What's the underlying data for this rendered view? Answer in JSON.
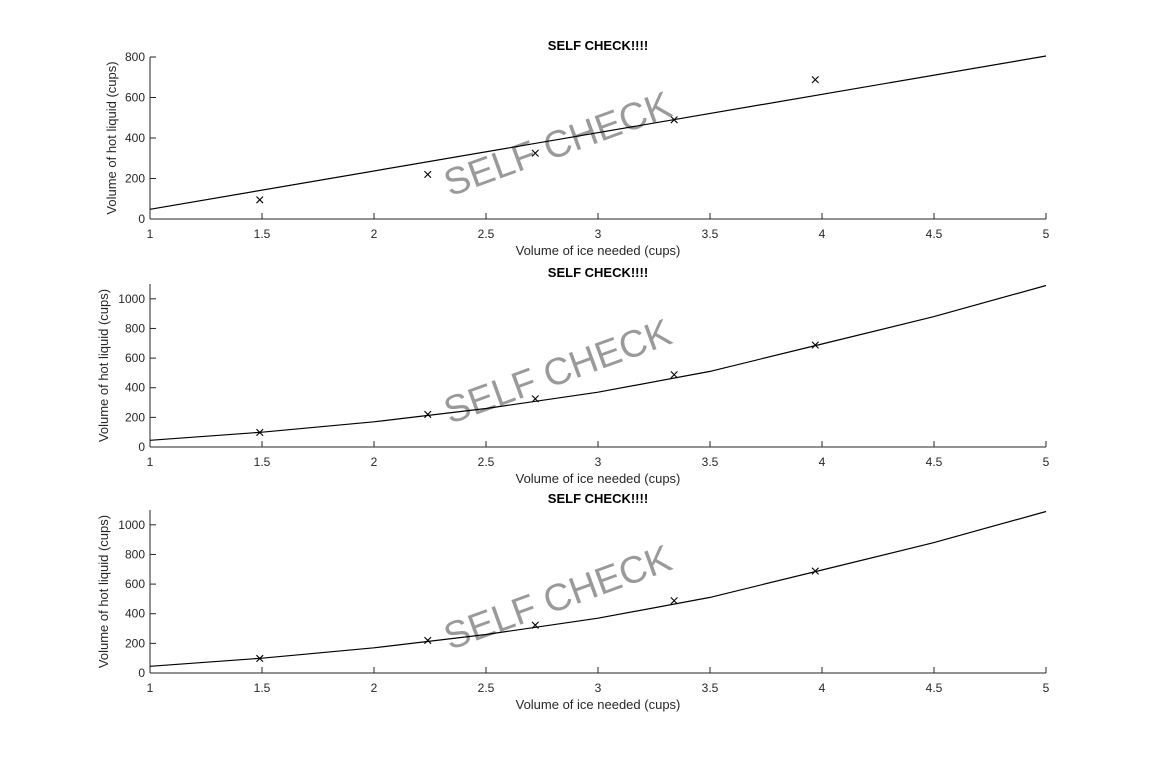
{
  "chart_data": [
    {
      "type": "scatter",
      "title": "SELF CHECK!!!!",
      "xlabel": "Volume of ice needed (cups)",
      "ylabel": "Volume of hot liquid (cups)",
      "watermark": "SELF CHECK",
      "xlim": [
        1,
        5
      ],
      "ylim": [
        0,
        800
      ],
      "xticks": [
        "1",
        "1.5",
        "2",
        "2.5",
        "3",
        "3.5",
        "4",
        "4.5",
        "5"
      ],
      "yticks": [
        "0",
        "200",
        "400",
        "600",
        "800"
      ],
      "grid": false,
      "series": [
        {
          "kind": "markers",
          "marker": "x",
          "x": [
            1.49,
            2.24,
            2.72,
            3.34,
            3.97
          ],
          "y": [
            95,
            220,
            325,
            490,
            688
          ]
        },
        {
          "kind": "line",
          "x": [
            1,
            5
          ],
          "y": [
            48,
            805
          ]
        }
      ]
    },
    {
      "type": "scatter",
      "title": "SELF CHECK!!!!",
      "xlabel": "Volume of ice needed (cups)",
      "ylabel": "Volume of hot liquid (cups)",
      "watermark": "SELF CHECK",
      "xlim": [
        1,
        5
      ],
      "ylim": [
        0,
        1100
      ],
      "xticks": [
        "1",
        "1.5",
        "2",
        "2.5",
        "3",
        "3.5",
        "4",
        "4.5",
        "5"
      ],
      "yticks": [
        "0",
        "200",
        "400",
        "600",
        "800",
        "1000"
      ],
      "grid": false,
      "series": [
        {
          "kind": "markers",
          "marker": "x",
          "x": [
            1.49,
            2.24,
            2.72,
            3.34,
            3.97
          ],
          "y": [
            98,
            220,
            325,
            488,
            688
          ]
        },
        {
          "kind": "line",
          "x": [
            1,
            1.5,
            2,
            2.5,
            3,
            3.5,
            4,
            4.5,
            5
          ],
          "y": [
            45,
            100,
            170,
            260,
            370,
            510,
            695,
            880,
            1090
          ]
        }
      ]
    },
    {
      "type": "scatter",
      "title": "SELF CHECK!!!!",
      "xlabel": "Volume of ice needed (cups)",
      "ylabel": "Volume of hot liquid (cups)",
      "watermark": "SELF CHECK",
      "xlim": [
        1,
        5
      ],
      "ylim": [
        0,
        1100
      ],
      "xticks": [
        "1",
        "1.5",
        "2",
        "2.5",
        "3",
        "3.5",
        "4",
        "4.5",
        "5"
      ],
      "yticks": [
        "0",
        "200",
        "400",
        "600",
        "800",
        "1000"
      ],
      "grid": false,
      "series": [
        {
          "kind": "markers",
          "marker": "x",
          "x": [
            1.49,
            2.24,
            2.72,
            3.34,
            3.97
          ],
          "y": [
            98,
            220,
            323,
            488,
            688
          ]
        },
        {
          "kind": "line",
          "x": [
            1,
            1.5,
            2,
            2.5,
            3,
            3.5,
            4,
            4.5,
            5
          ],
          "y": [
            45,
            100,
            170,
            260,
            370,
            510,
            695,
            880,
            1090
          ]
        }
      ]
    }
  ]
}
